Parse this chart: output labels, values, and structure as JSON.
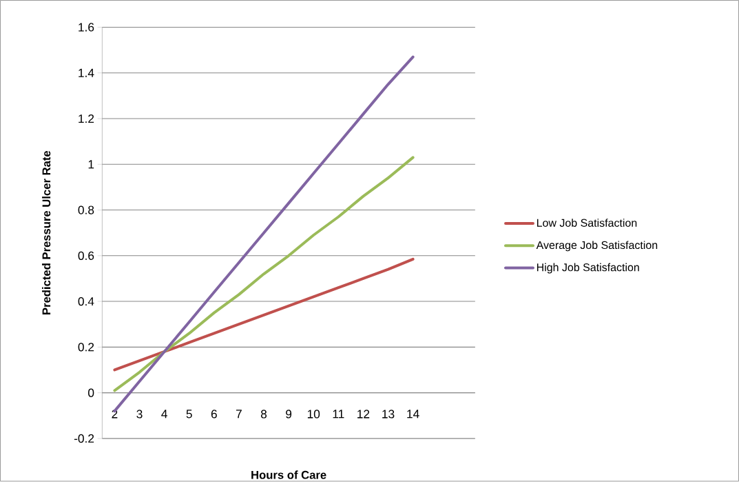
{
  "chart_data": {
    "type": "line",
    "xlabel": "Hours of Care",
    "ylabel": "Predicted Pressure Ulcer Rate",
    "categories": [
      "2",
      "3",
      "4",
      "5",
      "6",
      "7",
      "8",
      "9",
      "10",
      "11",
      "12",
      "13",
      "14",
      null,
      null
    ],
    "series": [
      {
        "name": "Low Job Satisfaction",
        "color": "#c0504d",
        "values": [
          0.1,
          0.14,
          0.18,
          0.22,
          0.26,
          0.3,
          0.34,
          0.38,
          0.42,
          0.46,
          0.5,
          0.54,
          0.585,
          null,
          null
        ]
      },
      {
        "name": "Average Job Satisfaction",
        "color": "#9bbb59",
        "values": [
          0.01,
          0.09,
          0.18,
          0.26,
          0.35,
          0.43,
          0.52,
          0.6,
          0.69,
          0.77,
          0.86,
          0.94,
          1.03,
          null,
          null
        ]
      },
      {
        "name": "High Job Satisfaction",
        "color": "#8064a2",
        "values": [
          -0.08,
          0.05,
          0.18,
          0.31,
          0.44,
          0.57,
          0.7,
          0.83,
          0.96,
          1.09,
          1.22,
          1.35,
          1.47,
          null,
          null
        ]
      }
    ],
    "ylim": [
      -0.2,
      1.6
    ],
    "yticks": [
      -0.2,
      0,
      0.2,
      0.4,
      0.6,
      0.8,
      1,
      1.2,
      1.4,
      1.6
    ],
    "grid": "y",
    "legend": "right"
  }
}
